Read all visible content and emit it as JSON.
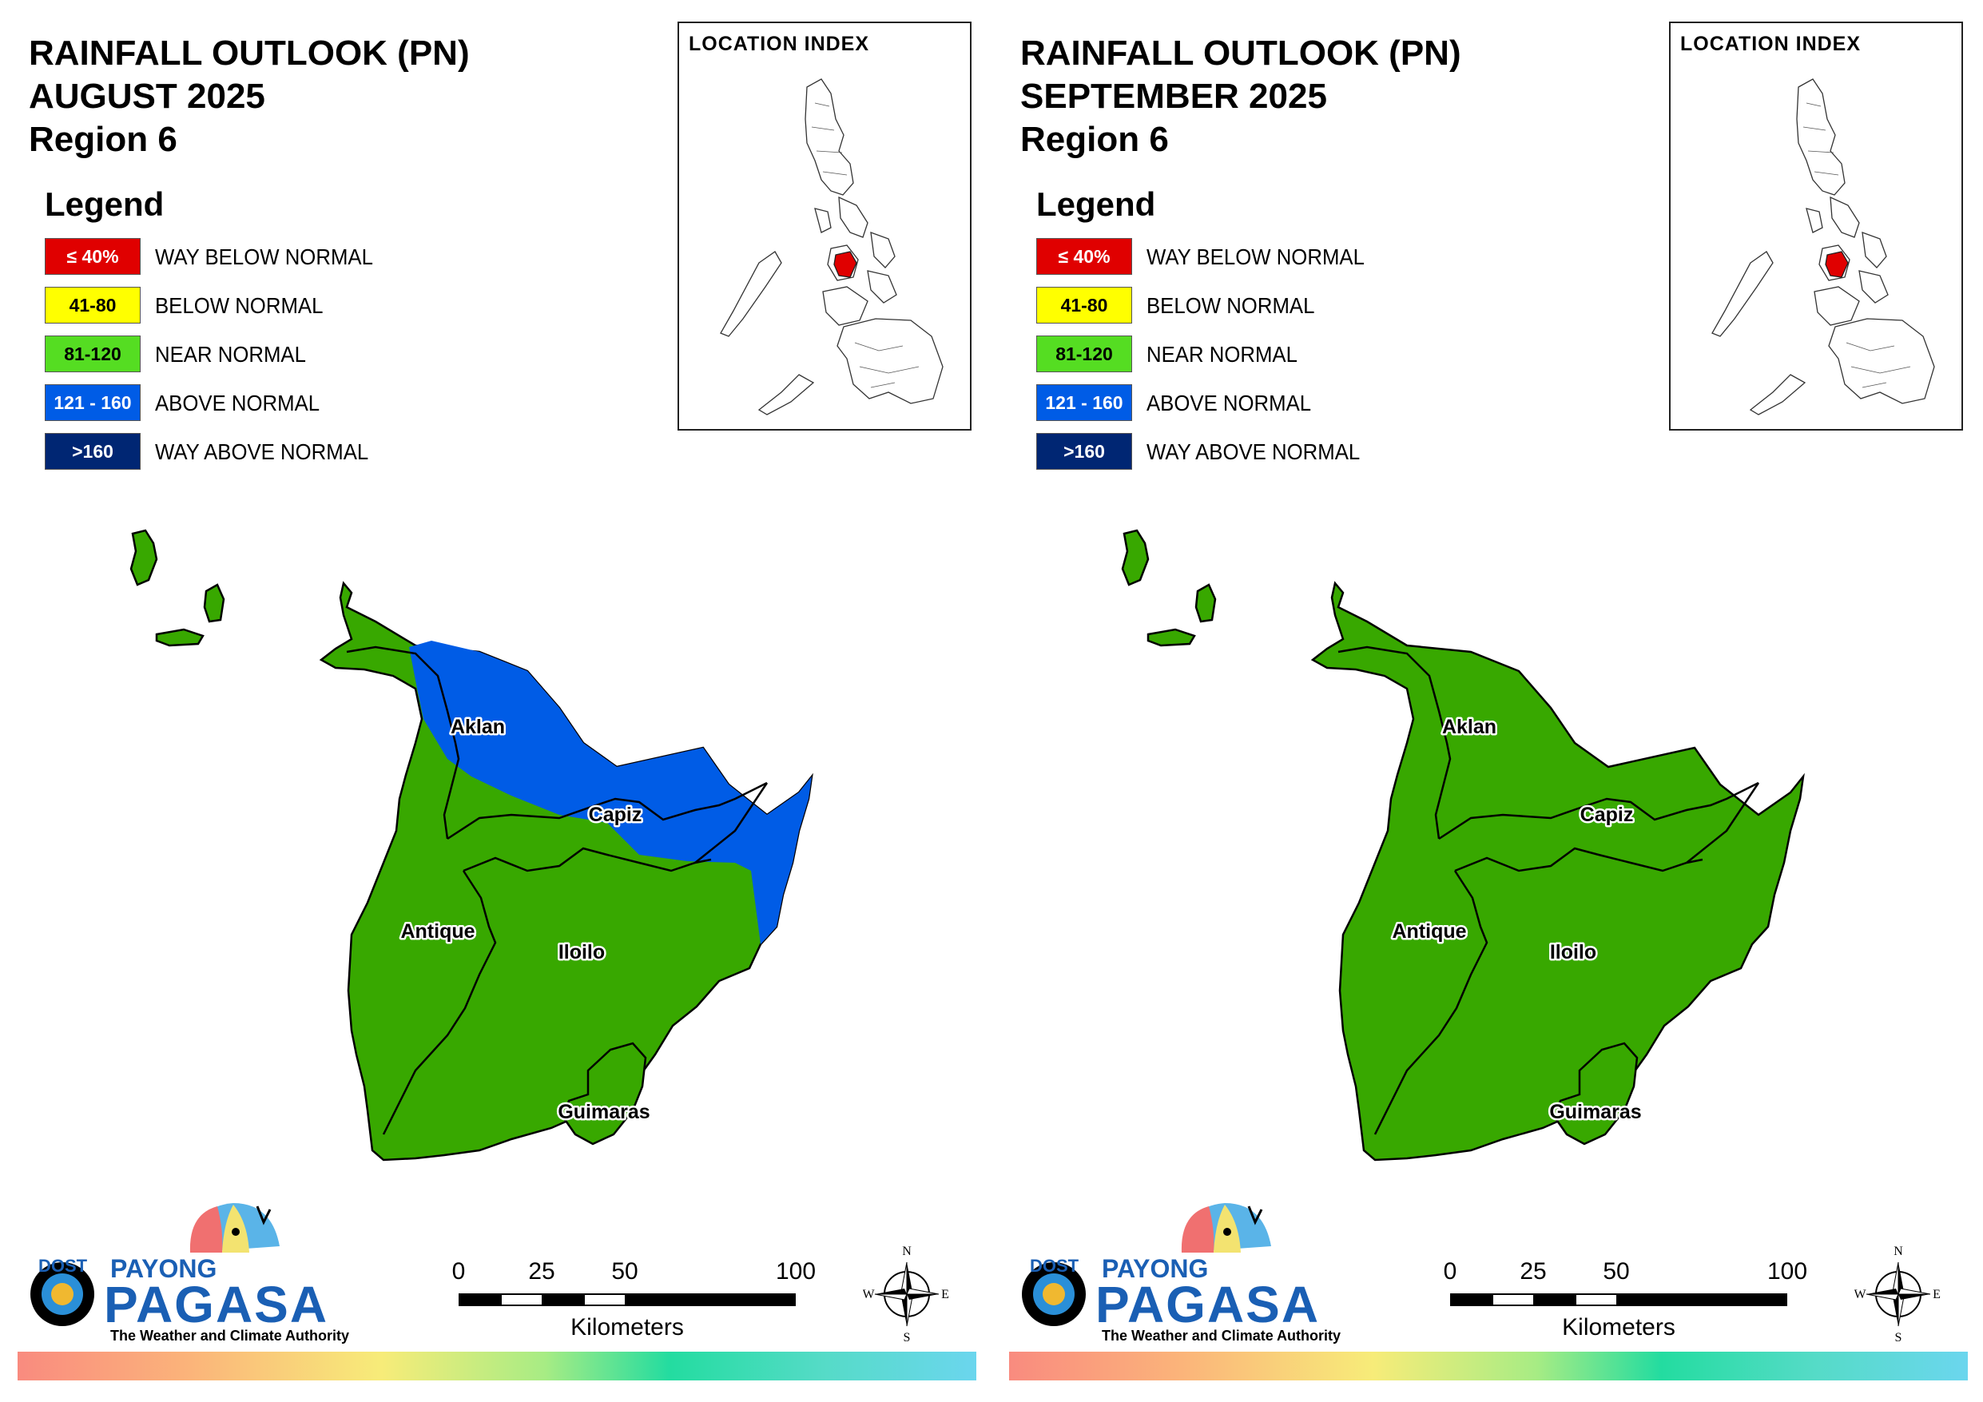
{
  "colors": {
    "way_below": "#e00000",
    "below": "#ffff00",
    "near": "#38a800",
    "above": "#005ce6",
    "way_above": "#002673"
  },
  "legend": {
    "heading": "Legend",
    "items": [
      {
        "range": "≤ 40%",
        "label": "WAY BELOW NORMAL",
        "color": "#e00000",
        "text_color": "#ffffff"
      },
      {
        "range": "41-80",
        "label": "BELOW NORMAL",
        "color": "#ffff00",
        "text_color": "#000000"
      },
      {
        "range": "81-120",
        "label": "NEAR NORMAL",
        "color": "#38a800",
        "text_color": "#000000"
      },
      {
        "range": "121 - 160",
        "label": "ABOVE NORMAL",
        "color": "#005ce6",
        "text_color": "#ffffff"
      },
      {
        "range": ">160",
        "label": "WAY ABOVE NORMAL",
        "color": "#002673",
        "text_color": "#ffffff"
      }
    ]
  },
  "inset": {
    "title": "LOCATION INDEX"
  },
  "provinces": {
    "aklan": "Aklan",
    "capiz": "Capiz",
    "antique": "Antique",
    "iloilo": "Iloilo",
    "guimaras": "Guimaras"
  },
  "scale": {
    "ticks": [
      "0",
      "25",
      "50",
      "100"
    ],
    "unit": "Kilometers"
  },
  "compass": {
    "n": "N",
    "s": "S",
    "e": "E",
    "w": "W"
  },
  "logo": {
    "dost": "DOST",
    "payong": "PAYONG",
    "pagasa": "PAGASA",
    "tagline": "The Weather and Climate Authority"
  },
  "panels": [
    {
      "title_line1": "RAINFALL OUTLOOK (PN)",
      "title_line2": "AUGUST 2025",
      "title_line3": "Region 6",
      "categories": {
        "north_coast": "ABOVE NORMAL",
        "rest": "NEAR NORMAL"
      }
    },
    {
      "title_line1": "RAINFALL OUTLOOK (PN)",
      "title_line2": "SEPTEMBER 2025",
      "title_line3": "Region 6",
      "categories": {
        "north_coast": "NEAR NORMAL",
        "rest": "NEAR NORMAL"
      }
    }
  ]
}
